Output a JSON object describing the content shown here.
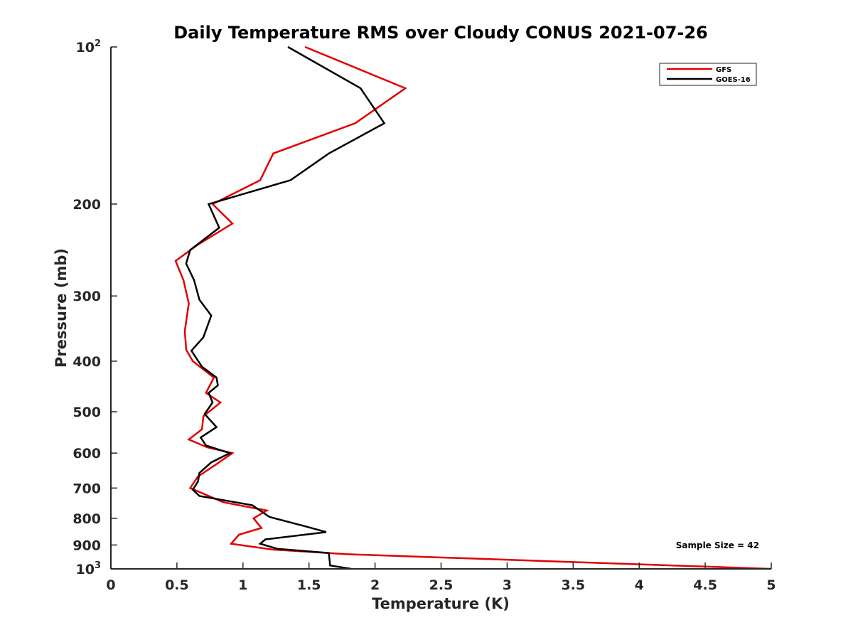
{
  "chart_data": {
    "type": "line",
    "title": "Daily Temperature RMS over Cloudy CONUS 2021-07-26",
    "xlabel": "Temperature (K)",
    "ylabel": "Pressure (mb)",
    "xlim": [
      0,
      5
    ],
    "ylim": [
      100,
      1000
    ],
    "y_scale": "log",
    "y_reversed": true,
    "grid": false,
    "legend_position": "top-right",
    "x_ticks": [
      {
        "value": 0,
        "label": "0"
      },
      {
        "value": 0.5,
        "label": "0.5"
      },
      {
        "value": 1,
        "label": "1"
      },
      {
        "value": 1.5,
        "label": "1.5"
      },
      {
        "value": 2,
        "label": "2"
      },
      {
        "value": 2.5,
        "label": "2.5"
      },
      {
        "value": 3,
        "label": "3"
      },
      {
        "value": 3.5,
        "label": "3.5"
      },
      {
        "value": 4,
        "label": "4"
      },
      {
        "value": 4.5,
        "label": "4.5"
      },
      {
        "value": 5,
        "label": "5"
      }
    ],
    "y_ticks": [
      {
        "value": 100,
        "label": "10",
        "sup": "2"
      },
      {
        "value": 200,
        "label": "200"
      },
      {
        "value": 300,
        "label": "300"
      },
      {
        "value": 400,
        "label": "400"
      },
      {
        "value": 500,
        "label": "500"
      },
      {
        "value": 600,
        "label": "600"
      },
      {
        "value": 700,
        "label": "700"
      },
      {
        "value": 800,
        "label": "800"
      },
      {
        "value": 900,
        "label": "900"
      },
      {
        "value": 1000,
        "label": "10",
        "sup": "3"
      }
    ],
    "annotation": "Sample Size = 42",
    "series": [
      {
        "name": "GFS",
        "color": "#e00000",
        "points": [
          [
            1.47,
            100
          ],
          [
            2.23,
            120
          ],
          [
            1.85,
            140
          ],
          [
            1.23,
            160
          ],
          [
            1.13,
            180
          ],
          [
            0.77,
            200
          ],
          [
            0.92,
            218
          ],
          [
            0.65,
            240
          ],
          [
            0.49,
            257
          ],
          [
            0.55,
            280
          ],
          [
            0.59,
            310
          ],
          [
            0.56,
            350
          ],
          [
            0.57,
            380
          ],
          [
            0.62,
            400
          ],
          [
            0.78,
            430
          ],
          [
            0.72,
            460
          ],
          [
            0.83,
            480
          ],
          [
            0.7,
            510
          ],
          [
            0.69,
            540
          ],
          [
            0.59,
            565
          ],
          [
            0.73,
            585
          ],
          [
            0.92,
            600
          ],
          [
            0.8,
            630
          ],
          [
            0.66,
            665
          ],
          [
            0.6,
            700
          ],
          [
            0.85,
            745
          ],
          [
            1.18,
            773
          ],
          [
            1.08,
            800
          ],
          [
            1.14,
            835
          ],
          [
            0.97,
            860
          ],
          [
            0.91,
            895
          ],
          [
            1.22,
            918
          ],
          [
            1.78,
            937
          ],
          [
            5.0,
            1000
          ]
        ]
      },
      {
        "name": "GOES-16",
        "color": "#000000",
        "points": [
          [
            1.34,
            100
          ],
          [
            1.89,
            120
          ],
          [
            2.07,
            140
          ],
          [
            1.65,
            160
          ],
          [
            1.36,
            180
          ],
          [
            0.74,
            200
          ],
          [
            0.82,
            222
          ],
          [
            0.6,
            245
          ],
          [
            0.57,
            260
          ],
          [
            0.63,
            280
          ],
          [
            0.67,
            305
          ],
          [
            0.76,
            327
          ],
          [
            0.7,
            360
          ],
          [
            0.61,
            382
          ],
          [
            0.69,
            410
          ],
          [
            0.8,
            430
          ],
          [
            0.81,
            445
          ],
          [
            0.74,
            460
          ],
          [
            0.77,
            480
          ],
          [
            0.71,
            505
          ],
          [
            0.8,
            535
          ],
          [
            0.68,
            560
          ],
          [
            0.72,
            580
          ],
          [
            0.9,
            600
          ],
          [
            0.76,
            625
          ],
          [
            0.67,
            655
          ],
          [
            0.66,
            680
          ],
          [
            0.62,
            705
          ],
          [
            0.67,
            725
          ],
          [
            1.07,
            755
          ],
          [
            1.2,
            795
          ],
          [
            1.48,
            830
          ],
          [
            1.63,
            850
          ],
          [
            1.17,
            878
          ],
          [
            1.13,
            895
          ],
          [
            1.26,
            915
          ],
          [
            1.65,
            932
          ],
          [
            1.66,
            985
          ],
          [
            1.82,
            1000
          ]
        ]
      }
    ]
  }
}
